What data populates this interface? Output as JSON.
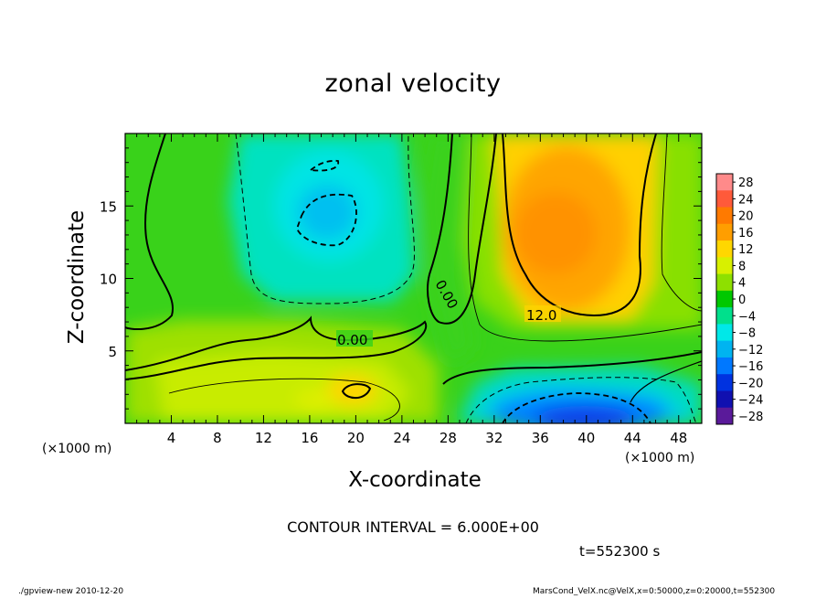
{
  "chart_data": {
    "type": "heatmap",
    "title": "zonal velocity",
    "xlabel": "X-coordinate",
    "ylabel": "Z-coordinate",
    "x_unit_left": "(×1000 m)",
    "x_unit_right": "(×1000 m)",
    "xlim": [
      0,
      50
    ],
    "ylim": [
      0,
      20
    ],
    "x_ticks": [
      4,
      8,
      12,
      16,
      20,
      24,
      28,
      32,
      36,
      40,
      44,
      48
    ],
    "y_ticks": [
      5,
      10,
      15
    ],
    "colorbar": {
      "levels": [
        28,
        24,
        20,
        16,
        12,
        8,
        4,
        0,
        -4,
        -8,
        -12,
        -16,
        -20,
        -24,
        -28
      ],
      "labels": [
        "28",
        "24",
        "20",
        "16",
        "12",
        "8",
        "4",
        "0",
        "−4",
        "−8",
        "−12",
        "−16",
        "−20",
        "−24",
        "−28"
      ],
      "colors": [
        "#ff8a8a",
        "#ff5a3a",
        "#ff7a00",
        "#ff9e00",
        "#ffd700",
        "#d8f000",
        "#8ee000",
        "#00c800",
        "#00e08c",
        "#00e8e8",
        "#00b4f0",
        "#0078ff",
        "#0032e0",
        "#1010b0",
        "#5a1a9a"
      ]
    },
    "contour_labels": [
      {
        "text": "0.00",
        "x": 18.6,
        "z": 5.6
      },
      {
        "text": "0.00",
        "x": 27.1,
        "z": 8.3
      },
      {
        "text": "12.0",
        "x": 34.6,
        "z": 7.2
      }
    ],
    "regions": [
      {
        "name": "upper-left cyan core",
        "x": 18,
        "z": 14.5,
        "value": -10
      },
      {
        "name": "upper-right orange core",
        "x": 38.5,
        "z": 12.5,
        "value": 16
      },
      {
        "name": "lower-right blue core",
        "x": 38,
        "z": 1.2,
        "value": -20
      },
      {
        "name": "lower-left orange patch",
        "x": 20,
        "z": 2.2,
        "value": 14
      }
    ]
  },
  "annotations": {
    "contour_interval": "CONTOUR INTERVAL = 6.000E+00",
    "time": "t=552300 s",
    "footer_left": "./gpview-new  2010-12-20",
    "footer_right": "MarsCond_VelX.nc@VelX,x=0:50000,z=0:20000,t=552300"
  }
}
